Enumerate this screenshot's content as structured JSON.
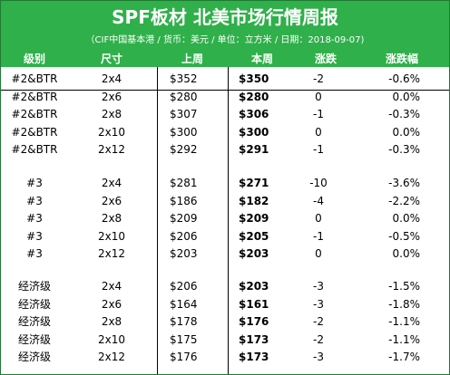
{
  "header": {
    "title": "SPF板材 北美市场行情周报",
    "subtitle": "（CIF中国基本港 / 货币：美元 / 单位：立方米 / 日期：2018-09-07)",
    "accent_color": "#2fb04a"
  },
  "columns": [
    "级别",
    "尺寸",
    "上周",
    "本周",
    "涨跌",
    "涨跌幅"
  ],
  "groups": [
    {
      "rows": [
        {
          "grade": "#2&BTR",
          "size": "2x4",
          "prev": "$352",
          "curr": "$350",
          "change": "-2",
          "pct": "-0.6%"
        },
        {
          "grade": "#2&BTR",
          "size": "2x6",
          "prev": "$280",
          "curr": "$280",
          "change": "0",
          "pct": "0.0%"
        },
        {
          "grade": "#2&BTR",
          "size": "2x8",
          "prev": "$307",
          "curr": "$306",
          "change": "-1",
          "pct": "-0.3%"
        },
        {
          "grade": "#2&BTR",
          "size": "2x10",
          "prev": "$300",
          "curr": "$300",
          "change": "0",
          "pct": "0.0%"
        },
        {
          "grade": "#2&BTR",
          "size": "2x12",
          "prev": "$292",
          "curr": "$291",
          "change": "-1",
          "pct": "-0.3%"
        }
      ]
    },
    {
      "rows": [
        {
          "grade": "#3",
          "size": "2x4",
          "prev": "$281",
          "curr": "$271",
          "change": "-10",
          "pct": "-3.6%"
        },
        {
          "grade": "#3",
          "size": "2x6",
          "prev": "$186",
          "curr": "$182",
          "change": "-4",
          "pct": "-2.2%"
        },
        {
          "grade": "#3",
          "size": "2x8",
          "prev": "$209",
          "curr": "$209",
          "change": "0",
          "pct": "0.0%"
        },
        {
          "grade": "#3",
          "size": "2x10",
          "prev": "$206",
          "curr": "$205",
          "change": "-1",
          "pct": "-0.5%"
        },
        {
          "grade": "#3",
          "size": "2x12",
          "prev": "$203",
          "curr": "$203",
          "change": "0",
          "pct": "0.0%"
        }
      ]
    },
    {
      "rows": [
        {
          "grade": "经济级",
          "size": "2x4",
          "prev": "$206",
          "curr": "$203",
          "change": "-3",
          "pct": "-1.5%"
        },
        {
          "grade": "经济级",
          "size": "2x6",
          "prev": "$164",
          "curr": "$161",
          "change": "-3",
          "pct": "-1.8%"
        },
        {
          "grade": "经济级",
          "size": "2x8",
          "prev": "$178",
          "curr": "$176",
          "change": "-2",
          "pct": "-1.1%"
        },
        {
          "grade": "经济级",
          "size": "2x10",
          "prev": "$175",
          "curr": "$173",
          "change": "-2",
          "pct": "-1.1%"
        },
        {
          "grade": "经济级",
          "size": "2x12",
          "prev": "$176",
          "curr": "$173",
          "change": "-3",
          "pct": "-1.7%"
        }
      ]
    }
  ]
}
